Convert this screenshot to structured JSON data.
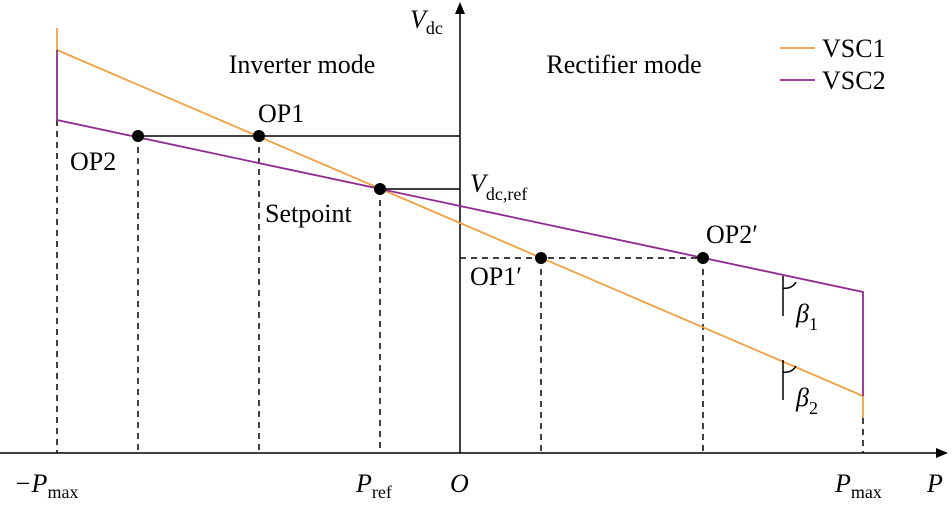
{
  "modes": {
    "inverter": "Inverter mode",
    "rectifier": "Rectifier mode"
  },
  "legend": [
    {
      "name": "VSC1",
      "color": "#f0a040"
    },
    {
      "name": "VSC2",
      "color": "#8e2a8e"
    }
  ],
  "points": {
    "op1": "OP1",
    "op2": "OP2",
    "setpoint": "Setpoint",
    "op1p": "OP1′",
    "op2p": "OP2′"
  },
  "axes": {
    "y_main": "V",
    "y_sub": "dc",
    "x_label": "P",
    "origin": "O",
    "vref_main": "V",
    "vref_sub": "dc,ref",
    "neg_pmax_main": "−P",
    "neg_pmax_sub": "max",
    "pmax_main": "P",
    "pmax_sub": "max",
    "pref_main": "P",
    "pref_sub": "ref"
  },
  "angles": {
    "beta1_main": "β",
    "beta1_sub": "1",
    "beta2_main": "β",
    "beta2_sub": "2"
  }
}
